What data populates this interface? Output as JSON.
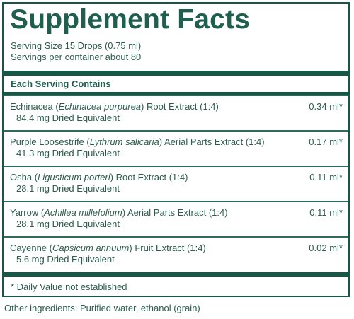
{
  "title": "Supplement Facts",
  "serving_size": "Serving Size 15 Drops (0.75 ml)",
  "servings_per_container": "Servings per container about 80",
  "each_serving_label": "Each Serving Contains",
  "ingredients": [
    {
      "name": "Echinacea",
      "latin": "Echinacea purpurea",
      "part": "Root Extract (1:4)",
      "dried_equivalent": "84.4 mg Dried Equivalent",
      "amount": "0.34 ml*"
    },
    {
      "name": "Purple Loosestrife",
      "latin": "Lythrum salicaria",
      "part": "Aerial Parts Extract (1:4)",
      "dried_equivalent": "41.3 mg Dried Equivalent",
      "amount": "0.17 ml*"
    },
    {
      "name": "Osha",
      "latin": "Ligusticum porteri",
      "part": "Root Extract (1:4)",
      "dried_equivalent": "28.1 mg Dried Equivalent",
      "amount": "0.11 ml*"
    },
    {
      "name": "Yarrow",
      "latin": "Achillea millefolium",
      "part": "Aerial Parts Extract (1:4)",
      "dried_equivalent": "28.1 mg Dried Equivalent",
      "amount": "0.11 ml*"
    },
    {
      "name": "Cayenne",
      "latin": "Capsicum annuum",
      "part": "Fruit Extract (1:4)",
      "dried_equivalent": "5.6 mg Dried Equivalent",
      "amount": "0.02 ml*"
    }
  ],
  "footnote": "* Daily Value not established",
  "other_ingredients": "Other ingredients: Purified water, ethanol (grain)",
  "colors": {
    "accent": "#165848",
    "text": "#2b5d4f"
  }
}
